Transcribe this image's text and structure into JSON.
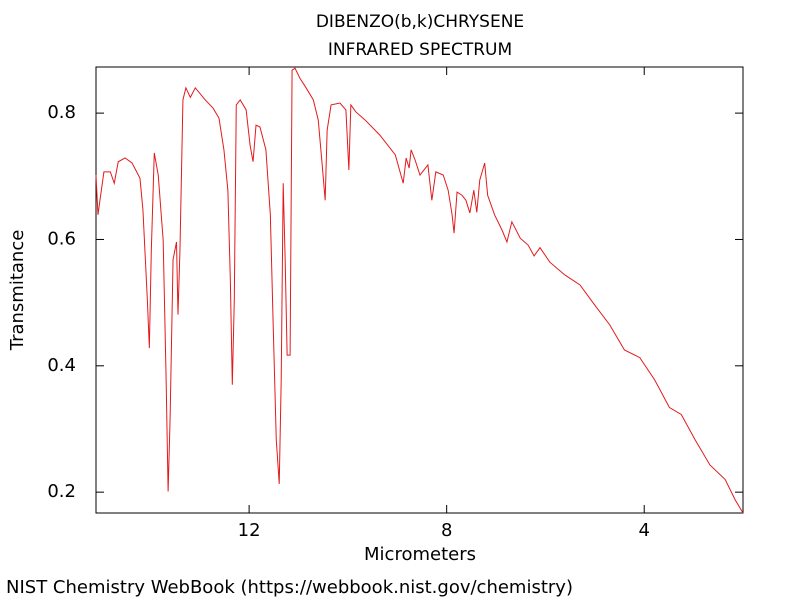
{
  "chart_data": {
    "type": "line",
    "title": "DIBENZO(b,k)CHRYSENE",
    "subtitle": "INFRARED SPECTRUM",
    "x_label": "Micrometers",
    "y_label": "Transmitance",
    "footer": "NIST Chemistry WebBook (https://webbook.nist.gov/chemistry)",
    "grid": false,
    "xlim": [
      15.1,
      2.0
    ],
    "ylim": [
      0.167,
      0.873
    ],
    "xticks": [
      12,
      8,
      4
    ],
    "yticks": [
      0.2,
      0.4,
      0.6,
      0.8
    ],
    "x": [
      15.1,
      15.06,
      15.02,
      14.94,
      14.81,
      14.73,
      14.65,
      14.51,
      14.37,
      14.21,
      14.15,
      14.06,
      14.02,
      13.98,
      13.92,
      13.84,
      13.74,
      13.68,
      13.64,
      13.6,
      13.54,
      13.47,
      13.44,
      13.4,
      13.34,
      13.28,
      13.19,
      13.09,
      12.89,
      12.73,
      12.61,
      12.51,
      12.43,
      12.38,
      12.34,
      12.3,
      12.26,
      12.18,
      12.06,
      11.98,
      11.92,
      11.86,
      11.78,
      11.66,
      11.57,
      11.51,
      11.45,
      11.39,
      11.35,
      11.31,
      11.27,
      11.23,
      11.17,
      11.13,
      11.07,
      10.97,
      10.87,
      10.7,
      10.6,
      10.52,
      10.46,
      10.42,
      10.34,
      10.16,
      10.04,
      9.98,
      9.94,
      9.84,
      9.65,
      9.35,
      9.04,
      8.88,
      8.82,
      8.76,
      8.72,
      8.64,
      8.54,
      8.38,
      8.3,
      8.22,
      8.07,
      7.97,
      7.89,
      7.85,
      7.79,
      7.69,
      7.61,
      7.53,
      7.45,
      7.39,
      7.33,
      7.23,
      7.17,
      7.03,
      6.88,
      6.78,
      6.68,
      6.51,
      6.35,
      6.23,
      6.11,
      5.91,
      5.61,
      5.3,
      5.0,
      4.7,
      4.4,
      4.09,
      3.79,
      3.49,
      3.25,
      2.97,
      2.67,
      2.36,
      2.16,
      2.0
    ],
    "series": [
      {
        "color": "#e31a1c",
        "values": [
          0.702,
          0.639,
          0.662,
          0.707,
          0.707,
          0.689,
          0.723,
          0.729,
          0.721,
          0.697,
          0.647,
          0.504,
          0.428,
          0.583,
          0.737,
          0.702,
          0.599,
          0.378,
          0.201,
          0.315,
          0.568,
          0.596,
          0.481,
          0.583,
          0.821,
          0.84,
          0.825,
          0.84,
          0.821,
          0.808,
          0.792,
          0.742,
          0.678,
          0.536,
          0.37,
          0.504,
          0.813,
          0.821,
          0.805,
          0.749,
          0.723,
          0.781,
          0.778,
          0.742,
          0.639,
          0.457,
          0.283,
          0.213,
          0.378,
          0.689,
          0.568,
          0.417,
          0.417,
          0.868,
          0.871,
          0.855,
          0.843,
          0.821,
          0.789,
          0.718,
          0.662,
          0.773,
          0.813,
          0.816,
          0.805,
          0.71,
          0.813,
          0.802,
          0.789,
          0.765,
          0.734,
          0.689,
          0.729,
          0.713,
          0.742,
          0.726,
          0.702,
          0.718,
          0.662,
          0.707,
          0.702,
          0.678,
          0.639,
          0.61,
          0.675,
          0.67,
          0.662,
          0.642,
          0.678,
          0.643,
          0.694,
          0.721,
          0.67,
          0.639,
          0.615,
          0.596,
          0.628,
          0.602,
          0.591,
          0.574,
          0.587,
          0.564,
          0.544,
          0.528,
          0.496,
          0.465,
          0.425,
          0.413,
          0.378,
          0.334,
          0.323,
          0.283,
          0.243,
          0.22,
          0.188,
          0.167
        ]
      }
    ]
  }
}
